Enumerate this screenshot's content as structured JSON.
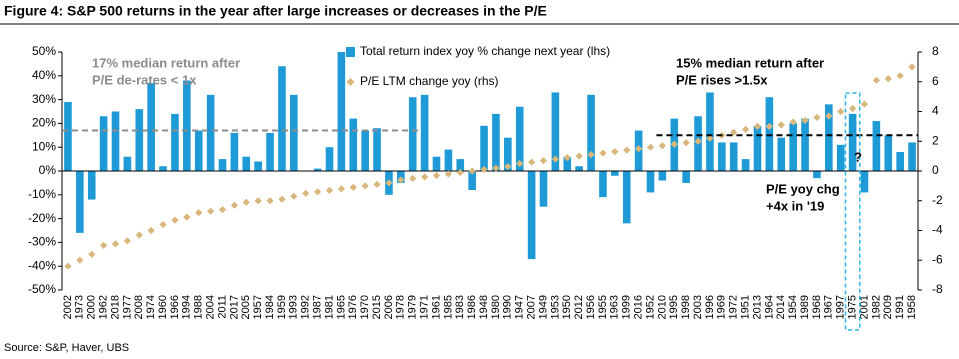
{
  "chart_data": {
    "type": "bar_scatter",
    "title": "Figure 4: S&P 500 returns in the year after large increases or decreases in the P/E",
    "source": "Source:  S&P, Haver, UBS",
    "categories": [
      "2002",
      "1973",
      "2000",
      "1962",
      "2018",
      "1977",
      "2008",
      "1974",
      "1960",
      "1966",
      "1994",
      "1988",
      "2004",
      "2011",
      "2017",
      "2005",
      "1957",
      "1984",
      "1959",
      "1993",
      "1992",
      "1987",
      "1981",
      "1965",
      "1976",
      "1970",
      "2015",
      "2006",
      "1978",
      "1979",
      "1971",
      "1961",
      "1985",
      "1983",
      "1986",
      "1948",
      "1980",
      "1990",
      "1947",
      "2007",
      "1949",
      "1953",
      "1950",
      "2012",
      "1956",
      "1955",
      "1963",
      "1999",
      "2016",
      "1952",
      "2010",
      "1995",
      "1998",
      "2003",
      "1996",
      "1969",
      "1972",
      "1951",
      "2013",
      "1964",
      "2014",
      "1954",
      "1989",
      "1968",
      "1967",
      "1997",
      "1975",
      "2001",
      "1982",
      "2009",
      "1991",
      "1958"
    ],
    "series": [
      {
        "name": "Total return index yoy % change next year (lhs)",
        "color": "#1e9ad6",
        "kind": "bar",
        "values": [
          29,
          -26,
          -12,
          23,
          25,
          6,
          26,
          37,
          2,
          24,
          38,
          17,
          32,
          5,
          16,
          6,
          4,
          16,
          44,
          32,
          0,
          1,
          10,
          50,
          22,
          17,
          18,
          -10,
          -5,
          31,
          32,
          6,
          9,
          5,
          -8,
          19,
          24,
          14,
          27,
          -37,
          -15,
          33,
          6,
          2,
          32,
          -11,
          -2,
          -22,
          17,
          -9,
          -4,
          22,
          -5,
          23,
          33,
          12,
          12,
          5,
          19,
          31,
          14,
          20,
          22,
          -3,
          28,
          11,
          24,
          -9,
          21,
          15,
          8,
          12
        ]
      },
      {
        "name": "P/E LTM change yoy (rhs)",
        "color": "#d9b77c",
        "kind": "diamond",
        "axis": "y2",
        "values": [
          -6.4,
          -6.0,
          -5.6,
          -5.0,
          -4.9,
          -4.7,
          -4.3,
          -4.0,
          -3.6,
          -3.3,
          -3.1,
          -2.8,
          -2.7,
          -2.6,
          -2.3,
          -2.1,
          -2.0,
          -2.0,
          -1.9,
          -1.7,
          -1.5,
          -1.4,
          -1.3,
          -1.2,
          -1.1,
          -1.0,
          -0.9,
          -0.8,
          -0.6,
          -0.5,
          -0.4,
          -0.3,
          -0.2,
          -0.1,
          0,
          0.1,
          0.2,
          0.3,
          0.5,
          0.6,
          0.7,
          0.8,
          0.9,
          1.0,
          1.1,
          1.2,
          1.3,
          1.4,
          1.5,
          1.6,
          1.7,
          1.8,
          1.9,
          2.0,
          2.2,
          2.4,
          2.6,
          2.8,
          3.0,
          3.0,
          3.1,
          3.3,
          3.4,
          3.6,
          3.7,
          4.0,
          4.2,
          4.5,
          6.1,
          6.2,
          6.4,
          7.0
        ]
      }
    ],
    "ylim": [
      -50,
      50
    ],
    "yticks": [
      {
        "value": 50,
        "label": "50%"
      },
      {
        "value": 40,
        "label": "40%"
      },
      {
        "value": 30,
        "label": "30%"
      },
      {
        "value": 20,
        "label": "20%"
      },
      {
        "value": 10,
        "label": "10%"
      },
      {
        "value": 0,
        "label": "0%"
      },
      {
        "value": -10,
        "label": "-10%"
      },
      {
        "value": -20,
        "label": "-20%"
      },
      {
        "value": -30,
        "label": "-30%"
      },
      {
        "value": -40,
        "label": "-40%"
      },
      {
        "value": -50,
        "label": "-50%"
      }
    ],
    "y2lim": [
      -8,
      8
    ],
    "y2ticks": [
      8,
      6,
      4,
      2,
      0,
      -2,
      -4,
      -6,
      -8
    ],
    "reference_lines": [
      {
        "value": 17,
        "from": "2002",
        "to": "1979",
        "color": "#8c8c8c"
      },
      {
        "value": 15,
        "from": "2010",
        "to": "1958",
        "color": "#000000"
      }
    ],
    "highlight": "1975",
    "annotations": [
      {
        "lines": [
          "17% median return after",
          "P/E de-rates < 1x"
        ],
        "color": "#8c8c8c"
      },
      {
        "lines": [
          "15% median return after",
          "P/E rises >1.5x"
        ],
        "color": "#000000"
      },
      {
        "lines": [
          "P/E yoy chg",
          "+4x in '19"
        ],
        "color": "#000000"
      },
      {
        "lines": [
          "?"
        ],
        "color": "#000000"
      }
    ]
  }
}
